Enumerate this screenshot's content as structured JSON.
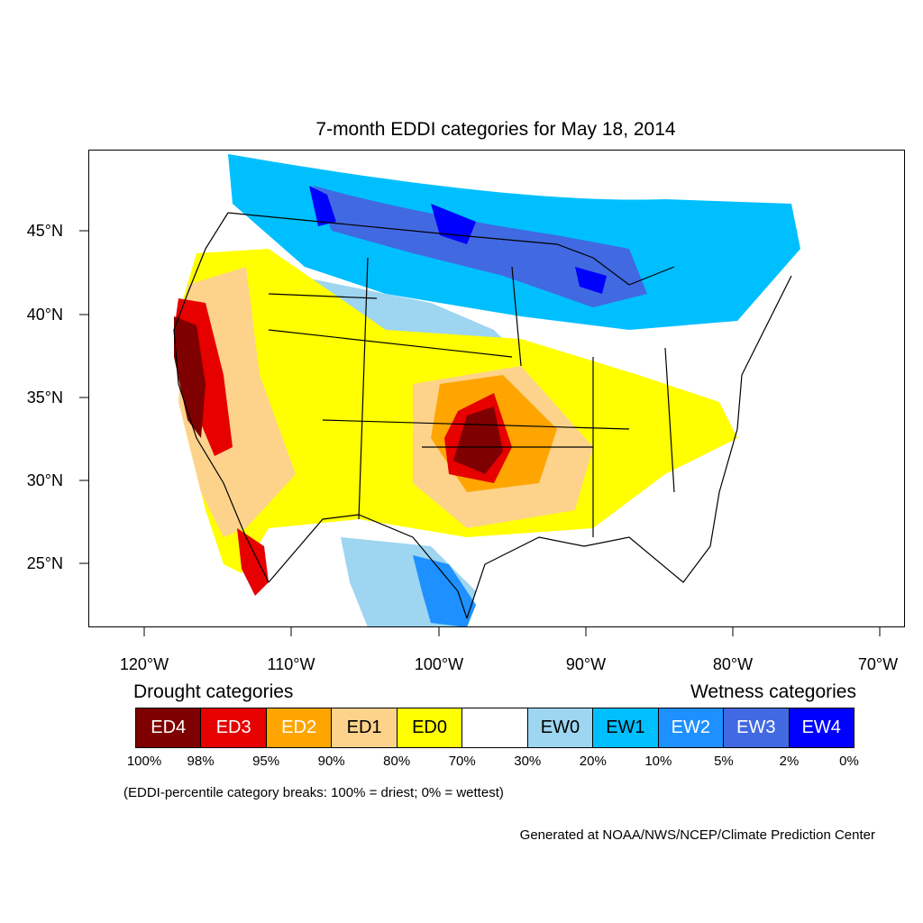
{
  "title": "7-month EDDI categories for May 18, 2014",
  "lat_labels": [
    "45°N",
    "40°N",
    "35°N",
    "30°N",
    "25°N"
  ],
  "lon_labels": [
    "120°W",
    "110°W",
    "100°W",
    "90°W",
    "80°W",
    "70°W"
  ],
  "legend": {
    "drought_title": "Drought categories",
    "wetness_title": "Wetness categories",
    "categories": [
      {
        "label": "ED4",
        "color": "#7f0000",
        "text_color": "#ffffff"
      },
      {
        "label": "ED3",
        "color": "#e60000",
        "text_color": "#ffffff"
      },
      {
        "label": "ED2",
        "color": "#ffa500",
        "text_color": "#ffffff"
      },
      {
        "label": "ED1",
        "color": "#fdd38c",
        "text_color": "#000000"
      },
      {
        "label": "ED0",
        "color": "#ffff00",
        "text_color": "#000000"
      },
      {
        "label": "",
        "color": "#ffffff",
        "text_color": "#000000"
      },
      {
        "label": "EW0",
        "color": "#9ed5f0",
        "text_color": "#000000"
      },
      {
        "label": "EW1",
        "color": "#00bfff",
        "text_color": "#000000"
      },
      {
        "label": "EW2",
        "color": "#1e90ff",
        "text_color": "#ffffff"
      },
      {
        "label": "EW3",
        "color": "#4169e1",
        "text_color": "#ffffff"
      },
      {
        "label": "EW4",
        "color": "#0000ff",
        "text_color": "#ffffff"
      }
    ],
    "breaks": [
      "100%",
      "98%",
      "95%",
      "90%",
      "80%",
      "70%",
      "30%",
      "20%",
      "10%",
      "5%",
      "2%",
      "0%"
    ]
  },
  "note": "(EDDI-percentile category breaks: 100% = driest; 0% = wettest)",
  "credit": "Generated at NOAA/NWS/NCEP/Climate Prediction Center"
}
